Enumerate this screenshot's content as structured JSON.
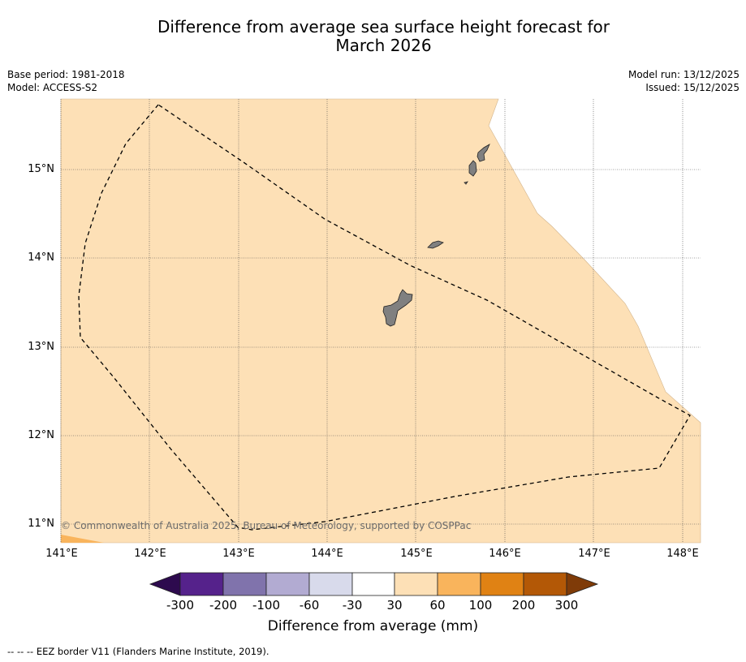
{
  "header": {
    "title_line1": "Difference from average sea surface height forecast for",
    "title_line2": "March 2026",
    "base_period": "Base period: 1981-2018",
    "model": "Model: ACCESS-S2",
    "model_run": "Model run: 13/12/2025",
    "issued": "Issued: 15/12/2025"
  },
  "map": {
    "extent": {
      "lon_min": 141.0,
      "lon_max": 148.2,
      "lat_min": 10.8,
      "lat_max": 15.8
    },
    "lat_labels": [
      "15°N",
      "14°N",
      "13°N",
      "12°N",
      "11°N"
    ],
    "lon_labels": [
      "141°E",
      "142°E",
      "143°E",
      "144°E",
      "145°E",
      "146°E",
      "147°E",
      "148°E"
    ],
    "copyright": "© Commonwealth of Australia 2025, Bureau of Meteorology, supported by COSPPac",
    "fill_category": "30 to 60 mm",
    "colors": {
      "fill": "#fde0b6",
      "land": "#808080",
      "accent": "#f9b45c",
      "grid": "#444444"
    }
  },
  "colorbar": {
    "ticks": [
      "-300",
      "-200",
      "-100",
      "-60",
      "-30",
      "30",
      "60",
      "100",
      "200",
      "300"
    ],
    "colors": [
      "#2d0a4e",
      "#55228b",
      "#8073ac",
      "#b2abd2",
      "#d8daeb",
      "#ffffff",
      "#fde0b6",
      "#f9b45c",
      "#e08214",
      "#b35806",
      "#7f3b08"
    ],
    "label": "Difference from average (mm)"
  },
  "footnote": "--  --  -- EEZ border V11 (Flanders Marine Institute, 2019)."
}
